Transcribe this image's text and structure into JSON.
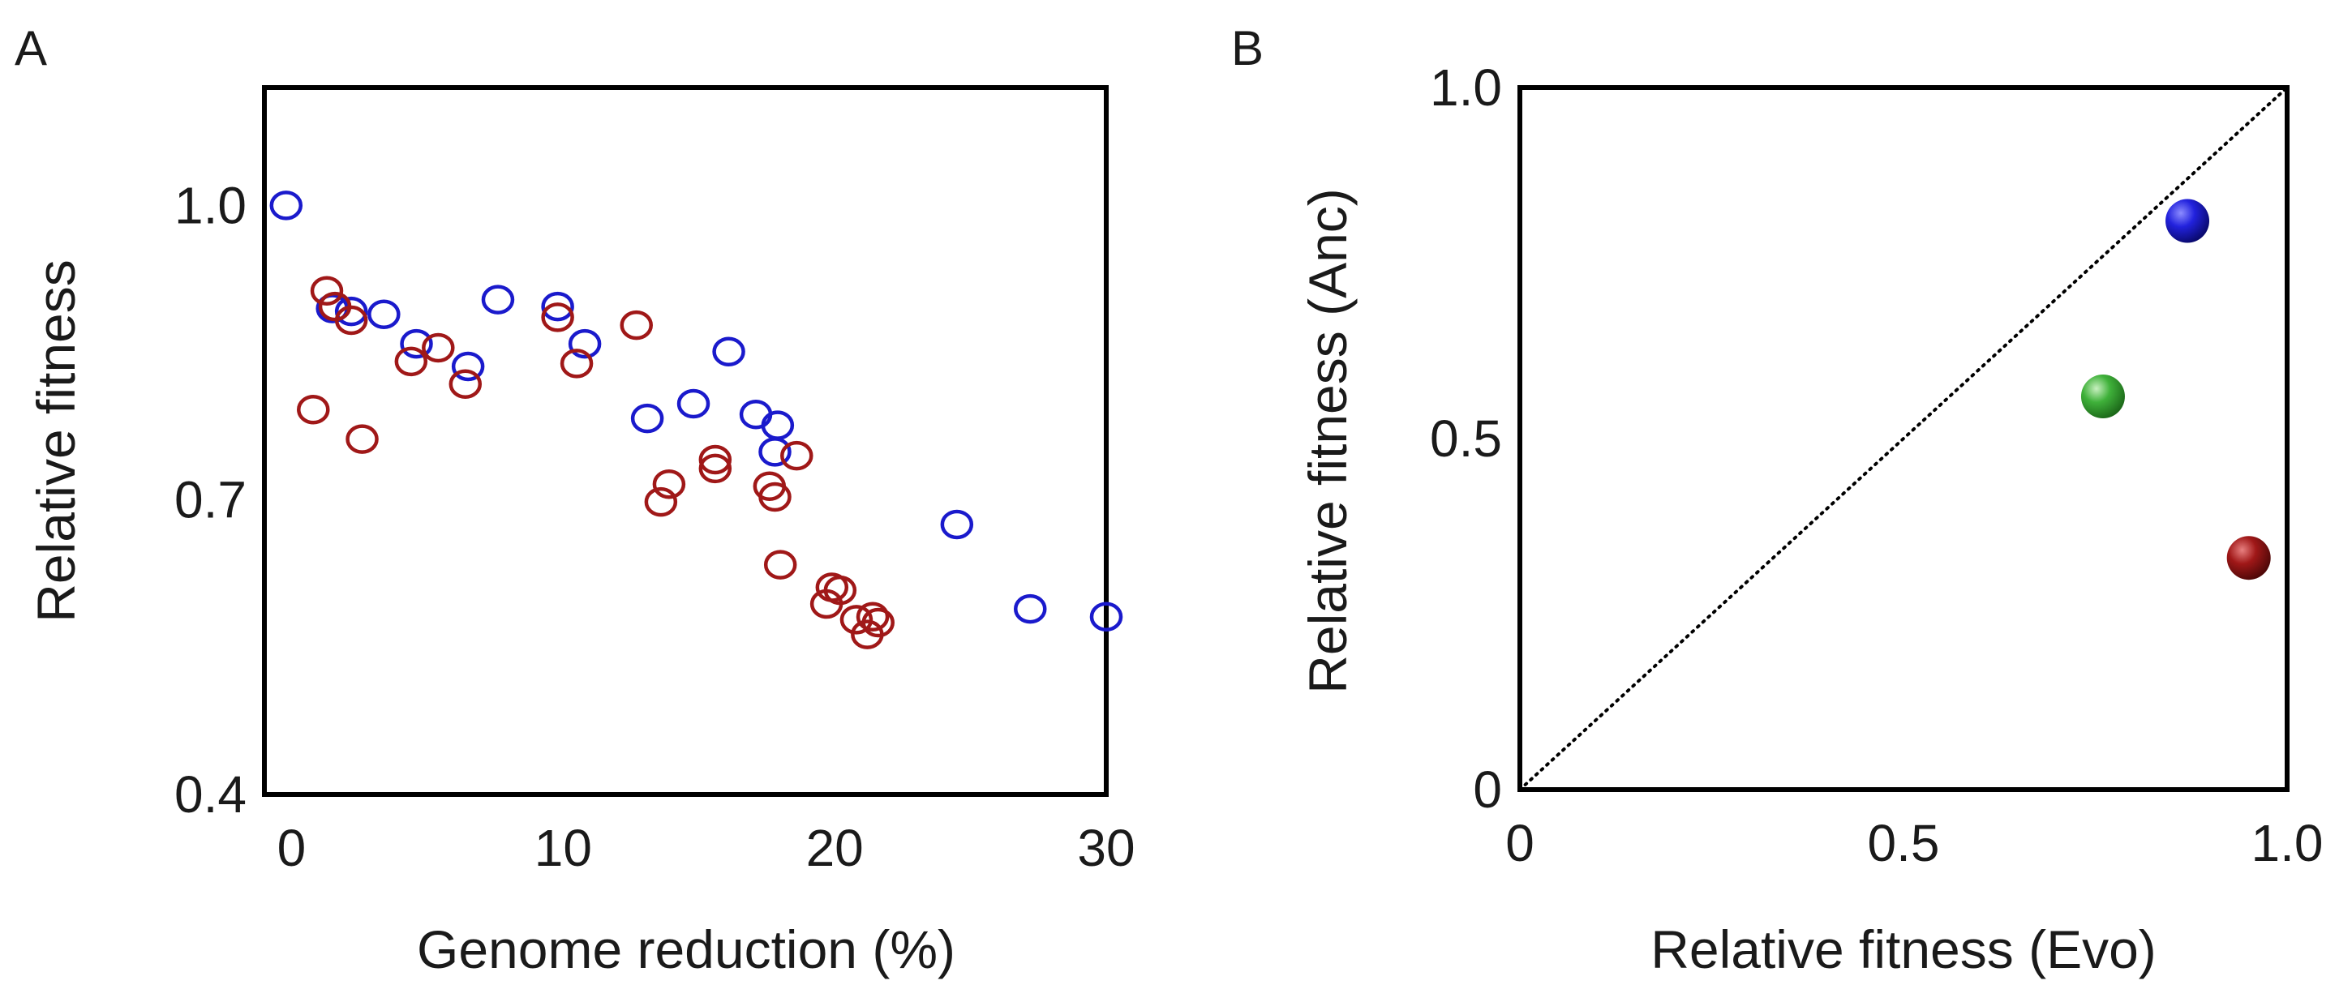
{
  "colors": {
    "blue": "#1a1acc",
    "red": "#a01818",
    "green": "#3aaa35",
    "axis": "#000000"
  },
  "chart_data": [
    {
      "panel": "A",
      "type": "scatter",
      "title": "",
      "xlabel": "Genome reduction (%)",
      "ylabel": "Relative fitness",
      "xlim": [
        -1,
        30
      ],
      "ylim": [
        0.4,
        1.12
      ],
      "xticks": [
        0,
        10,
        20,
        30
      ],
      "xtick_labels": [
        "0",
        "10",
        "20",
        "30"
      ],
      "yticks": [
        0.4,
        0.7,
        1.0
      ],
      "ytick_labels": [
        "0.4",
        "0.7",
        "1.0"
      ],
      "marker": "open-circle",
      "series": [
        {
          "name": "blue",
          "color": "#1a1acc",
          "points": [
            [
              -0.2,
              1.0
            ],
            [
              1.5,
              0.895
            ],
            [
              2.2,
              0.892
            ],
            [
              3.4,
              0.889
            ],
            [
              4.6,
              0.859
            ],
            [
              6.5,
              0.836
            ],
            [
              7.6,
              0.904
            ],
            [
              9.8,
              0.897
            ],
            [
              10.8,
              0.859
            ],
            [
              13.1,
              0.783
            ],
            [
              14.8,
              0.798
            ],
            [
              16.1,
              0.851
            ],
            [
              17.1,
              0.787
            ],
            [
              17.9,
              0.776
            ],
            [
              17.8,
              0.749
            ],
            [
              24.5,
              0.675
            ],
            [
              27.2,
              0.589
            ],
            [
              30.0,
              0.581
            ]
          ]
        },
        {
          "name": "red",
          "color": "#a01818",
          "points": [
            [
              0.8,
              0.792
            ],
            [
              1.3,
              0.913
            ],
            [
              1.6,
              0.897
            ],
            [
              2.2,
              0.883
            ],
            [
              2.6,
              0.762
            ],
            [
              4.4,
              0.841
            ],
            [
              5.4,
              0.855
            ],
            [
              6.4,
              0.818
            ],
            [
              9.8,
              0.886
            ],
            [
              10.5,
              0.839
            ],
            [
              12.7,
              0.878
            ],
            [
              13.6,
              0.698
            ],
            [
              13.9,
              0.716
            ],
            [
              15.6,
              0.741
            ],
            [
              15.6,
              0.732
            ],
            [
              17.6,
              0.714
            ],
            [
              17.8,
              0.703
            ],
            [
              18.0,
              0.634
            ],
            [
              18.6,
              0.745
            ],
            [
              19.7,
              0.594
            ],
            [
              19.9,
              0.611
            ],
            [
              20.2,
              0.608
            ],
            [
              20.8,
              0.578
            ],
            [
              21.2,
              0.563
            ],
            [
              21.4,
              0.581
            ],
            [
              21.6,
              0.575
            ]
          ]
        }
      ]
    },
    {
      "panel": "B",
      "type": "scatter",
      "title": "",
      "xlabel": "Relative fitness (Evo)",
      "ylabel": "Relative fitness (Anc)",
      "xlim": [
        0,
        1.0
      ],
      "ylim": [
        0,
        1.0
      ],
      "xticks": [
        0,
        0.5,
        1.0
      ],
      "xtick_labels": [
        "0",
        "0.5",
        "1.0"
      ],
      "yticks": [
        0,
        0.5,
        1.0
      ],
      "ytick_labels": [
        "0",
        "0.5",
        "1.0"
      ],
      "marker": "filled-sphere",
      "reference_line": "y = x (dotted)",
      "series": [
        {
          "name": "blue",
          "color": "#1a1acc",
          "points": [
            [
              0.87,
              0.81
            ]
          ]
        },
        {
          "name": "green",
          "color": "#3aaa35",
          "points": [
            [
              0.76,
              0.56
            ]
          ]
        },
        {
          "name": "red",
          "color": "#a01818",
          "points": [
            [
              0.95,
              0.33
            ]
          ]
        }
      ]
    }
  ]
}
